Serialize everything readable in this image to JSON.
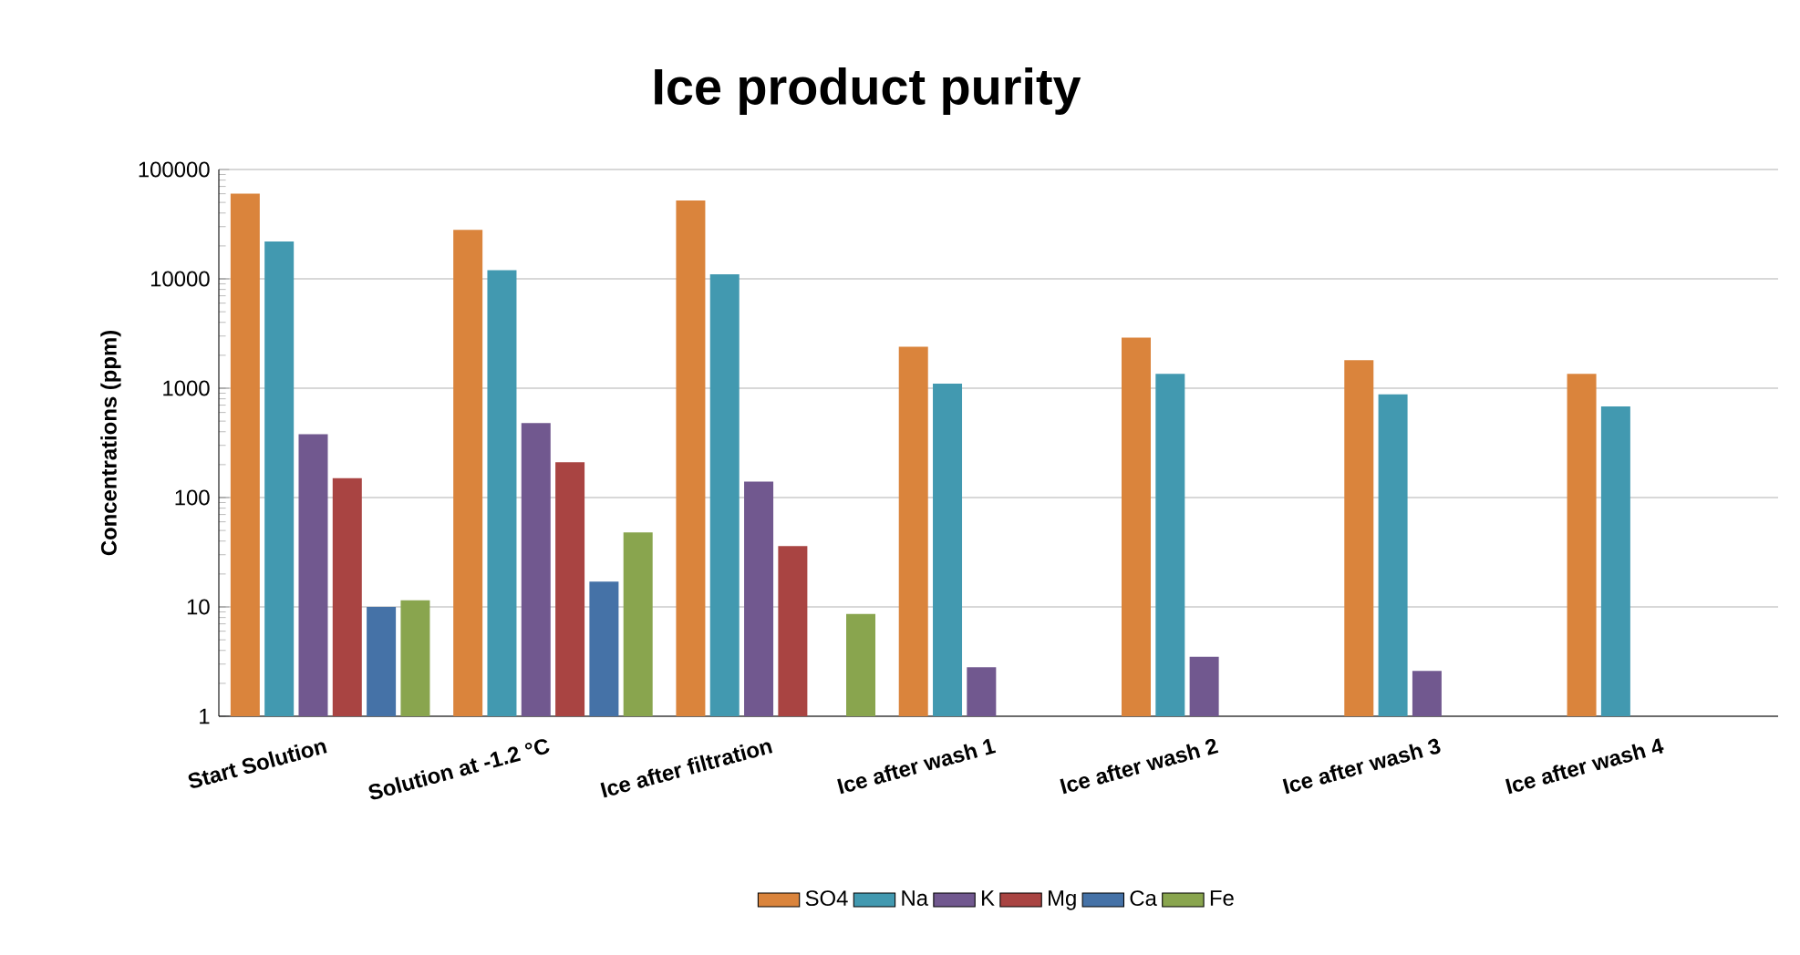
{
  "chart_data": {
    "type": "bar",
    "title": "Ice product purity",
    "ylabel": "Concentrations (ppm)",
    "categories": [
      "Start Solution",
      "Solution at -1.2 °C",
      "Ice after filtration",
      "Ice after wash 1",
      "Ice after wash 2",
      "Ice after wash 3",
      "Ice after wash 4"
    ],
    "series": [
      {
        "name": "SO4",
        "color": "#da843c",
        "values": [
          60000,
          28000,
          52000,
          2400,
          2900,
          1800,
          1350
        ]
      },
      {
        "name": "Na",
        "color": "#4299b0",
        "values": [
          22000,
          12000,
          11000,
          1100,
          1350,
          880,
          680
        ]
      },
      {
        "name": "K",
        "color": "#71588f",
        "values": [
          380,
          480,
          140,
          2.8,
          3.5,
          2.6,
          null
        ]
      },
      {
        "name": "Mg",
        "color": "#a94442",
        "values": [
          150,
          210,
          36,
          1,
          null,
          null,
          null
        ]
      },
      {
        "name": "Ca",
        "color": "#4572a7",
        "values": [
          10,
          17,
          null,
          null,
          null,
          null,
          null
        ]
      },
      {
        "name": "Fe",
        "color": "#89a54e",
        "values": [
          11.5,
          48,
          8.6,
          null,
          null,
          null,
          null
        ]
      }
    ],
    "log": "y",
    "ylim": [
      1,
      100000
    ],
    "yticks": [
      1,
      10,
      100,
      1000,
      10000,
      100000
    ],
    "grid": "y",
    "legend": "bottom"
  }
}
